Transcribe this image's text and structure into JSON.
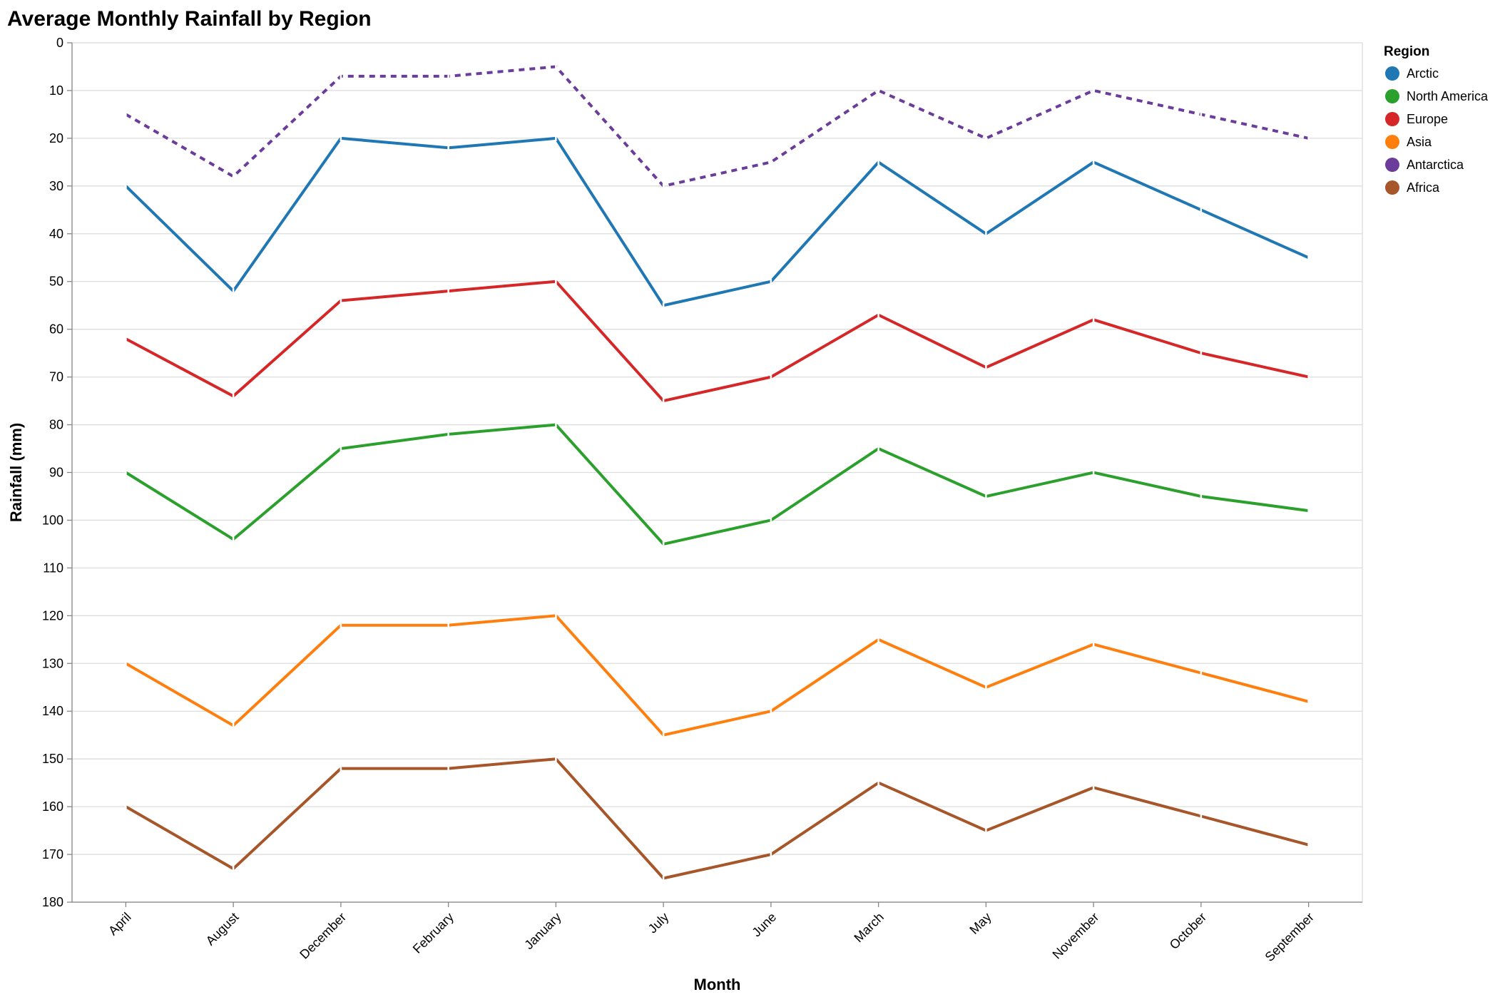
{
  "chart_data": {
    "type": "line",
    "title": "Average Monthly Rainfall by Region",
    "xlabel": "Month",
    "ylabel": "Rainfall (mm)",
    "y_reversed": true,
    "ylim": [
      0,
      180
    ],
    "yticks": [
      0,
      10,
      20,
      30,
      40,
      50,
      60,
      70,
      80,
      90,
      100,
      110,
      120,
      130,
      140,
      150,
      160,
      170,
      180
    ],
    "grid": true,
    "legend": {
      "title": "Region",
      "placement": "top-right"
    },
    "categories": [
      "April",
      "August",
      "December",
      "February",
      "January",
      "July",
      "June",
      "March",
      "May",
      "November",
      "October",
      "September"
    ],
    "series": [
      {
        "name": "Arctic",
        "color": "#1f77b4",
        "dash": "solid",
        "values": [
          30,
          52,
          20,
          22,
          20,
          55,
          50,
          25,
          40,
          25,
          35,
          45
        ]
      },
      {
        "name": "North America",
        "color": "#2ca02c",
        "dash": "solid",
        "values": [
          90,
          104,
          85,
          82,
          80,
          105,
          100,
          85,
          95,
          90,
          95,
          98
        ]
      },
      {
        "name": "Europe",
        "color": "#d62728",
        "dash": "solid",
        "values": [
          62,
          74,
          54,
          52,
          50,
          75,
          70,
          57,
          68,
          58,
          65,
          70
        ]
      },
      {
        "name": "Asia",
        "color": "#ff7f0e",
        "dash": "solid",
        "values": [
          130,
          143,
          122,
          122,
          120,
          145,
          140,
          125,
          135,
          126,
          132,
          138
        ]
      },
      {
        "name": "Antarctica",
        "color": "#6a3d9a",
        "dash": "dashed",
        "values": [
          15,
          28,
          7,
          7,
          5,
          30,
          25,
          10,
          20,
          10,
          15,
          20
        ]
      },
      {
        "name": "Africa",
        "color": "#a65628",
        "dash": "solid",
        "values": [
          160,
          173,
          152,
          152,
          150,
          175,
          170,
          155,
          165,
          156,
          162,
          168
        ]
      }
    ]
  }
}
